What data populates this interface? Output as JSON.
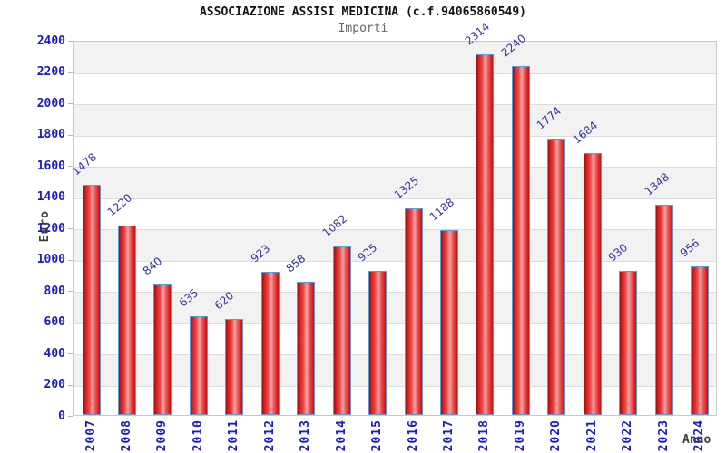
{
  "title": "ASSOCIAZIONE ASSISI MEDICINA (c.f.94065860549)",
  "subtitle": "Importi",
  "chart_data": {
    "type": "bar",
    "title": "ASSOCIAZIONE ASSISI MEDICINA (c.f.94065860549)",
    "subtitle": "Importi",
    "xlabel": "Anno",
    "ylabel": "Euro",
    "categories": [
      "2007",
      "2008",
      "2009",
      "2010",
      "2011",
      "2012",
      "2013",
      "2014",
      "2015",
      "2016",
      "2017",
      "2018",
      "2019",
      "2020",
      "2021",
      "2022",
      "2023",
      "2024"
    ],
    "values": [
      1478,
      1220,
      840,
      635,
      620,
      923,
      858,
      1082,
      925,
      1325,
      1188,
      2314,
      2240,
      1774,
      1684,
      930,
      1348,
      956
    ],
    "ylim": [
      0,
      2400
    ],
    "ytick_step": 200,
    "grid": "horizontal-bands-alternating",
    "legend": "none",
    "colors": {
      "bar_fill": "#e03030",
      "bar_highlight": "#f5a3a3",
      "bar_border": "#5e9ad6",
      "tick_label": "#1a1acd",
      "value_label": "#333399",
      "axis_title": "#3d3d3d",
      "band_gray": "#f2f2f2",
      "gridline": "#dcdcdc",
      "plot_border": "#c9c9c9"
    }
  }
}
